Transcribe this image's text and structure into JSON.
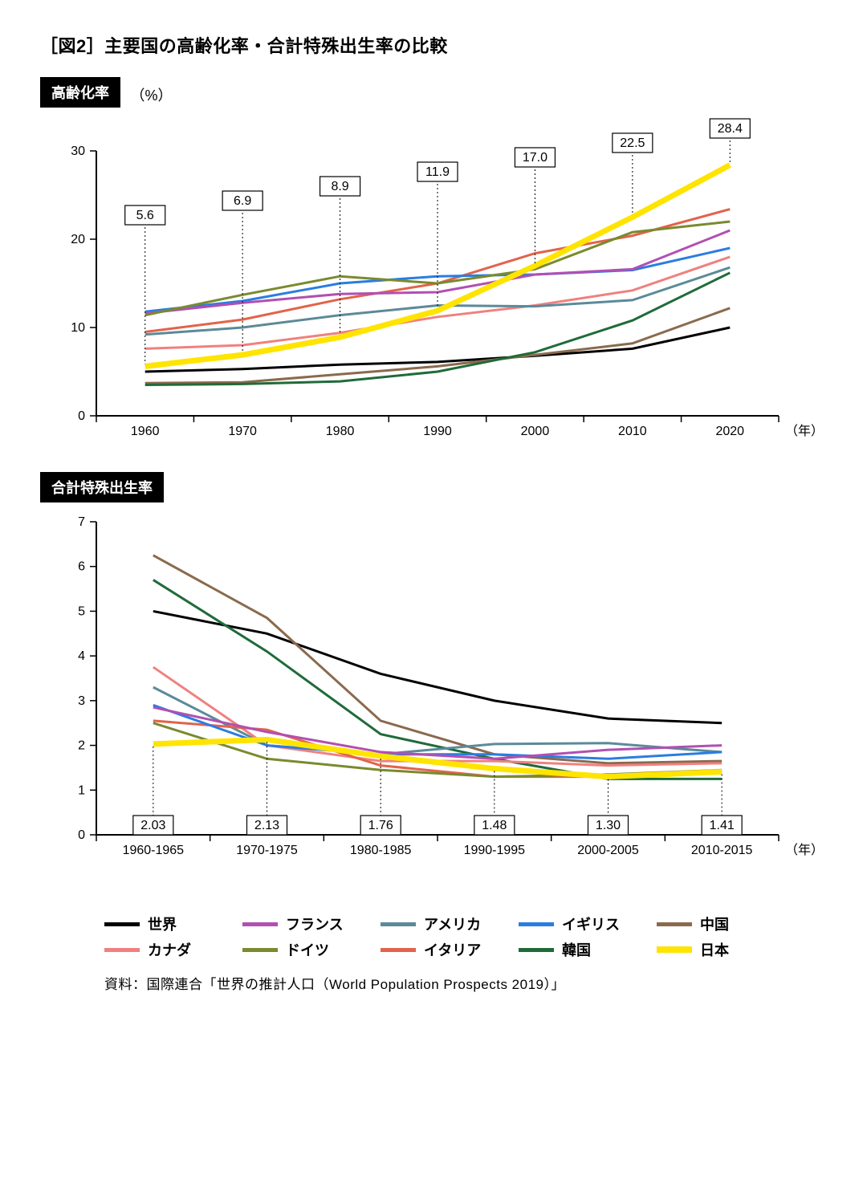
{
  "title": "［図2］主要国の高齢化率・合計特殊出生率の比較",
  "colors": {
    "world": "#000000",
    "france": "#b24fb2",
    "usa": "#5c8a99",
    "uk": "#2a7de1",
    "china": "#8a6a4d",
    "canada": "#f08080",
    "germany": "#7a8a2e",
    "italy": "#e2634a",
    "korea": "#1f6b3a",
    "japan": "#ffe400"
  },
  "legend": [
    {
      "key": "world",
      "label": "世界"
    },
    {
      "key": "france",
      "label": "フランス"
    },
    {
      "key": "usa",
      "label": "アメリカ"
    },
    {
      "key": "uk",
      "label": "イギリス"
    },
    {
      "key": "china",
      "label": "中国"
    },
    {
      "key": "canada",
      "label": "カナダ"
    },
    {
      "key": "germany",
      "label": "ドイツ"
    },
    {
      "key": "italy",
      "label": "イタリア"
    },
    {
      "key": "korea",
      "label": "韓国"
    },
    {
      "key": "japan",
      "label": "日本"
    }
  ],
  "aging": {
    "tag": "高齢化率",
    "unit": "（%）",
    "x_axis_unit": "（年）",
    "categories": [
      "1960",
      "1970",
      "1980",
      "1990",
      "2000",
      "2010",
      "2020"
    ],
    "ylim": [
      0,
      30
    ],
    "ytick_step": 10,
    "line_width": 3,
    "japan_line_width": 7,
    "series": {
      "world": [
        5.0,
        5.3,
        5.8,
        6.1,
        6.8,
        7.6,
        10.0
      ],
      "france": [
        11.6,
        12.8,
        13.8,
        14.0,
        16.0,
        16.6,
        21.0
      ],
      "usa": [
        9.2,
        10.0,
        11.4,
        12.5,
        12.4,
        13.1,
        16.8
      ],
      "uk": [
        11.8,
        13.0,
        15.0,
        15.8,
        16.0,
        16.5,
        19.0
      ],
      "china": [
        3.7,
        3.8,
        4.7,
        5.6,
        6.9,
        8.2,
        12.2
      ],
      "canada": [
        7.6,
        8.0,
        9.4,
        11.2,
        12.5,
        14.2,
        18.0
      ],
      "germany": [
        11.4,
        13.7,
        15.8,
        15.0,
        16.6,
        20.8,
        22.0
      ],
      "italy": [
        9.5,
        10.9,
        13.2,
        15.0,
        18.4,
        20.4,
        23.4
      ],
      "korea": [
        3.5,
        3.6,
        3.9,
        5.0,
        7.2,
        10.8,
        16.2
      ],
      "japan": [
        5.6,
        6.9,
        8.9,
        11.9,
        17.0,
        22.5,
        28.4
      ]
    },
    "japan_callouts": [
      "5.6",
      "6.9",
      "8.9",
      "11.9",
      "17.0",
      "22.5",
      "28.4"
    ]
  },
  "fertility": {
    "tag": "合計特殊出生率",
    "x_axis_unit": "（年）",
    "categories": [
      "1960-1965",
      "1970-1975",
      "1980-1985",
      "1990-1995",
      "2000-2005",
      "2010-2015"
    ],
    "ylim": [
      0,
      7
    ],
    "ytick_step": 1,
    "line_width": 3,
    "japan_line_width": 7,
    "series": {
      "world": [
        5.0,
        4.5,
        3.6,
        3.0,
        2.6,
        2.5
      ],
      "france": [
        2.85,
        2.3,
        1.85,
        1.7,
        1.9,
        2.0
      ],
      "usa": [
        3.3,
        2.0,
        1.8,
        2.03,
        2.05,
        1.85
      ],
      "uk": [
        2.9,
        2.0,
        1.8,
        1.8,
        1.7,
        1.85
      ],
      "china": [
        6.25,
        4.85,
        2.55,
        1.8,
        1.6,
        1.65
      ],
      "canada": [
        3.75,
        2.0,
        1.65,
        1.65,
        1.55,
        1.6
      ],
      "germany": [
        2.5,
        1.7,
        1.45,
        1.3,
        1.35,
        1.45
      ],
      "italy": [
        2.55,
        2.35,
        1.55,
        1.3,
        1.3,
        1.42
      ],
      "korea": [
        5.7,
        4.1,
        2.25,
        1.7,
        1.25,
        1.25
      ],
      "japan": [
        2.03,
        2.13,
        1.76,
        1.48,
        1.3,
        1.41
      ]
    },
    "japan_callouts": [
      "2.03",
      "2.13",
      "1.76",
      "1.48",
      "1.30",
      "1.41"
    ]
  },
  "source": "資料：国際連合「世界の推計人口（World Population Prospects 2019）」"
}
